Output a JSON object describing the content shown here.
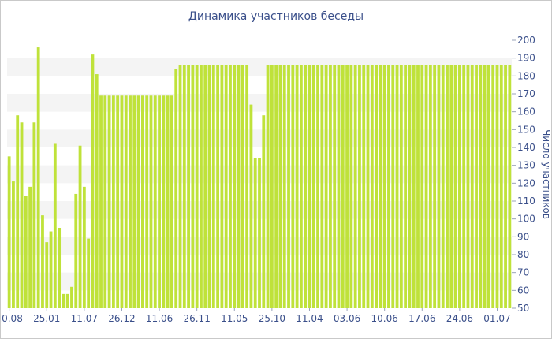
{
  "chart_data": {
    "type": "bar",
    "title": "Динамика участников беседы",
    "xlabel": "",
    "ylabel": "Число участников",
    "ylim": [
      50,
      200
    ],
    "yticks": [
      50,
      60,
      70,
      80,
      90,
      100,
      110,
      120,
      130,
      140,
      150,
      160,
      170,
      180,
      190,
      200
    ],
    "grid": "alternating horizontal bands",
    "bar_color": "#bfe23a",
    "band_color": "#f4f4f4",
    "text_color": "#3a4f8a",
    "xtick_labels": [
      "10.08",
      "25.01",
      "11.07",
      "26.12",
      "11.06",
      "26.11",
      "11.05",
      "25.10",
      "11.04",
      "03.06",
      "10.06",
      "17.06",
      "24.06",
      "01.07"
    ],
    "xtick_bar_index": [
      0,
      9,
      18,
      27,
      36,
      45,
      54,
      63,
      72,
      81,
      90,
      99,
      108,
      117
    ],
    "values": [
      135,
      121,
      158,
      154,
      113,
      118,
      154,
      196,
      102,
      87,
      93,
      142,
      95,
      58,
      58,
      62,
      114,
      141,
      118,
      89,
      192,
      181,
      169,
      169,
      169,
      169,
      169,
      169,
      169,
      169,
      169,
      169,
      169,
      169,
      169,
      169,
      169,
      169,
      169,
      169,
      184,
      186,
      186,
      186,
      186,
      186,
      186,
      186,
      186,
      186,
      186,
      186,
      186,
      186,
      186,
      186,
      186,
      186,
      164,
      134,
      134,
      158,
      186,
      186,
      186,
      186,
      186,
      186,
      186,
      186,
      186,
      186,
      186,
      186,
      186,
      186,
      186,
      186,
      186,
      186,
      186,
      186,
      186,
      186,
      186,
      186,
      186,
      186,
      186,
      186,
      186,
      186,
      186,
      186,
      186,
      186,
      186,
      186,
      186,
      186,
      186,
      186,
      186,
      186,
      186,
      186,
      186,
      186,
      186,
      186,
      186,
      186,
      186,
      186,
      186,
      186,
      186,
      186,
      186,
      186,
      186
    ]
  }
}
